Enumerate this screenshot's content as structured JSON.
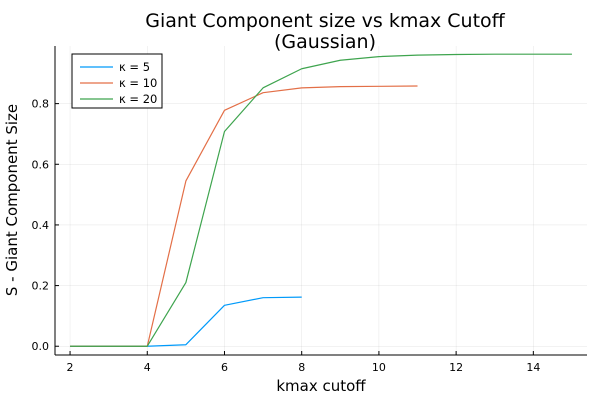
{
  "chart_data": {
    "type": "line",
    "title_line1": "Giant Component size vs kmax Cutoff",
    "title_line2": "(Gaussian)",
    "xlabel": "kmax cutoff",
    "ylabel": "S - Giant Component Size",
    "xlim": [
      1.61,
      15.39
    ],
    "ylim": [
      -0.0289,
      0.99
    ],
    "xticks": [
      2,
      4,
      6,
      8,
      10,
      12,
      14
    ],
    "yticks": [
      0.0,
      0.2,
      0.4,
      0.6,
      0.8
    ],
    "ytick_labels": [
      "0.0",
      "0.2",
      "0.4",
      "0.6",
      "0.8"
    ],
    "grid": true,
    "legend_position": "top-left",
    "series": [
      {
        "name": "κ = 5",
        "color": "#009AFA",
        "x": [
          2,
          3,
          4,
          5,
          6,
          7,
          8
        ],
        "y": [
          0.0,
          0.0,
          0.0,
          0.005,
          0.135,
          0.16,
          0.162
        ]
      },
      {
        "name": "κ = 10",
        "color": "#E36F47",
        "x": [
          2,
          3,
          4,
          5,
          6,
          7,
          8,
          9,
          10,
          11
        ],
        "y": [
          0.0,
          0.0,
          0.0,
          0.545,
          0.778,
          0.836,
          0.852,
          0.856,
          0.857,
          0.858
        ]
      },
      {
        "name": "κ = 20",
        "color": "#3EA44E",
        "x": [
          2,
          3,
          4,
          5,
          6,
          7,
          8,
          9,
          10,
          11,
          12,
          13,
          14,
          15
        ],
        "y": [
          0.0,
          0.0,
          0.0,
          0.21,
          0.708,
          0.852,
          0.915,
          0.943,
          0.955,
          0.96,
          0.962,
          0.963,
          0.963,
          0.963
        ]
      }
    ]
  }
}
